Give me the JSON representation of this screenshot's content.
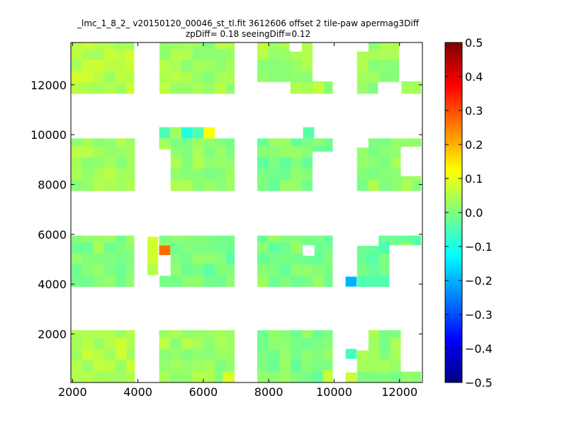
{
  "chart_data": {
    "type": "heatmap",
    "title": "_lmc_1_8_2_ v20150120_00046_st_tl.fit 3612606 offset 2 tile-paw apermag3Diff",
    "subtitle": "zpDiff= 0.18 seeingDiff=0.12",
    "xlim": [
      1950,
      12700
    ],
    "ylim": [
      50,
      13700
    ],
    "x_ticks": [
      2000,
      4000,
      6000,
      8000,
      10000,
      12000
    ],
    "y_ticks": [
      2000,
      4000,
      6000,
      8000,
      10000,
      12000
    ],
    "colorbar": {
      "range": [
        -0.5,
        0.5
      ],
      "ticks": [
        "0.5",
        "0.4",
        "0.3",
        "0.2",
        "0.1",
        "0.0",
        "−0.1",
        "−0.2",
        "−0.3",
        "−0.4",
        "−0.5"
      ],
      "colormap": "jet"
    },
    "cell_size": [
      340,
      450
    ],
    "blocks": [
      {
        "x": [
          1950,
          3900
        ],
        "y": [
          50,
          2150
        ],
        "level": 0.05
      },
      {
        "x": [
          4650,
          6950
        ],
        "y": [
          50,
          2150
        ],
        "level": 0.03
      },
      {
        "x": [
          7650,
          9950
        ],
        "y": [
          50,
          2150
        ],
        "level": 0.0
      },
      {
        "x": [
          10700,
          12650
        ],
        "y": [
          50,
          2150
        ],
        "level": 0.02
      },
      {
        "x": [
          1950,
          3900
        ],
        "y": [
          3900,
          5950
        ],
        "level": 0.01
      },
      {
        "x": [
          4650,
          6950
        ],
        "y": [
          3900,
          5950
        ],
        "level": -0.01
      },
      {
        "x": [
          7650,
          9950
        ],
        "y": [
          3900,
          5950
        ],
        "level": 0.0
      },
      {
        "x": [
          10700,
          12650
        ],
        "y": [
          3900,
          5950
        ],
        "level": -0.02
      },
      {
        "x": [
          1950,
          3900
        ],
        "y": [
          7750,
          9850
        ],
        "level": 0.03
      },
      {
        "x": [
          4650,
          6950
        ],
        "y": [
          7750,
          9850
        ],
        "level": 0.02
      },
      {
        "x": [
          7650,
          9950
        ],
        "y": [
          7750,
          9850
        ],
        "level": 0.0
      },
      {
        "x": [
          10700,
          12650
        ],
        "y": [
          7750,
          9850
        ],
        "level": 0.02
      },
      {
        "x": [
          1950,
          3900
        ],
        "y": [
          11650,
          13700
        ],
        "level": 0.06
      },
      {
        "x": [
          4650,
          6950
        ],
        "y": [
          11650,
          13700
        ],
        "level": 0.03
      },
      {
        "x": [
          7650,
          9950
        ],
        "y": [
          11650,
          13700
        ],
        "level": 0.04
      },
      {
        "x": [
          10700,
          12650
        ],
        "y": [
          11650,
          13700
        ],
        "level": 0.02
      }
    ],
    "cells": [
      {
        "x": 4650,
        "y": 9850,
        "w": 340,
        "h": 450,
        "value": -0.05
      },
      {
        "x": 4990,
        "y": 9850,
        "w": 340,
        "h": 450,
        "value": 0.03
      },
      {
        "x": 5330,
        "y": 9850,
        "w": 340,
        "h": 450,
        "value": -0.09
      },
      {
        "x": 5670,
        "y": 9850,
        "w": 340,
        "h": 450,
        "value": -0.05
      },
      {
        "x": 6010,
        "y": 9850,
        "w": 340,
        "h": 450,
        "value": 0.12
      },
      {
        "x": 9050,
        "y": 9850,
        "w": 340,
        "h": 450,
        "value": -0.04
      },
      {
        "x": 4280,
        "y": 4850,
        "w": 340,
        "h": 1050,
        "value": 0.08
      },
      {
        "x": 4280,
        "y": 4350,
        "w": 340,
        "h": 500,
        "value": 0.05
      },
      {
        "x": 4650,
        "y": 5150,
        "w": 340,
        "h": 400,
        "value": 0.27
      },
      {
        "x": 10350,
        "y": 3900,
        "w": 340,
        "h": 400,
        "value": -0.2
      },
      {
        "x": 10350,
        "y": 1000,
        "w": 340,
        "h": 400,
        "value": -0.06
      },
      {
        "x": 10350,
        "y": 50,
        "w": 340,
        "h": 400,
        "value": 0.07
      },
      {
        "x": 6600,
        "y": 50,
        "w": 340,
        "h": 400,
        "value": 0.09
      },
      {
        "x": 9650,
        "y": 50,
        "w": 300,
        "h": 500,
        "value": 0.07
      }
    ],
    "gaps": [
      {
        "x": 3900,
        "y": 11650,
        "w": 750,
        "h": 2050
      },
      {
        "x": 3900,
        "y": 3900,
        "w": 380,
        "h": 2050
      },
      {
        "x": 4280,
        "y": 3900,
        "w": 370,
        "h": 450
      },
      {
        "x": 4650,
        "y": 4350,
        "w": 340,
        "h": 800
      },
      {
        "x": 4650,
        "y": 7750,
        "w": 340,
        "h": 1650
      },
      {
        "x": 7650,
        "y": 11650,
        "w": 1000,
        "h": 450
      },
      {
        "x": 8650,
        "y": 13350,
        "w": 350,
        "h": 350
      },
      {
        "x": 9350,
        "y": 12150,
        "w": 600,
        "h": 1550
      },
      {
        "x": 9350,
        "y": 7750,
        "w": 600,
        "h": 1550
      },
      {
        "x": 9050,
        "y": 5150,
        "w": 340,
        "h": 400
      },
      {
        "x": 10700,
        "y": 13350,
        "w": 340,
        "h": 350
      },
      {
        "x": 11350,
        "y": 11650,
        "w": 700,
        "h": 450
      },
      {
        "x": 12000,
        "y": 12150,
        "w": 650,
        "h": 1550
      },
      {
        "x": 11700,
        "y": 3900,
        "w": 950,
        "h": 1650
      },
      {
        "x": 10700,
        "y": 5550,
        "w": 650,
        "h": 400
      },
      {
        "x": 12050,
        "y": 8350,
        "w": 600,
        "h": 1150
      },
      {
        "x": 10700,
        "y": 9500,
        "w": 340,
        "h": 350
      },
      {
        "x": 10700,
        "y": 1350,
        "w": 340,
        "h": 800
      },
      {
        "x": 12050,
        "y": 500,
        "w": 600,
        "h": 1650
      }
    ]
  }
}
